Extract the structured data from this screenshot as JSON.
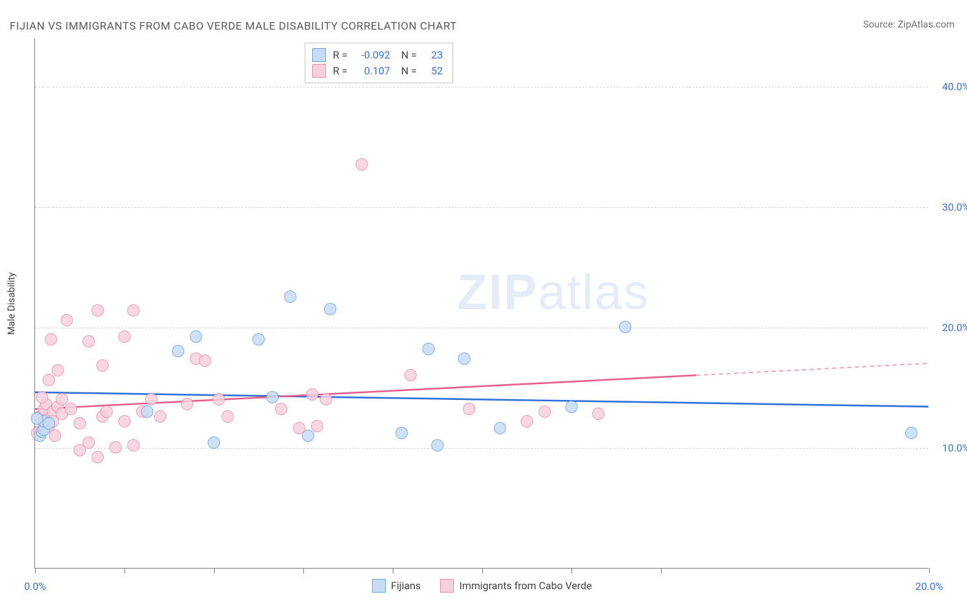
{
  "title": "FIJIAN VS IMMIGRANTS FROM CABO VERDE MALE DISABILITY CORRELATION CHART",
  "source": "Source: ZipAtlas.com",
  "watermark_a": "ZIP",
  "watermark_b": "atlas",
  "ylabel": "Male Disability",
  "chart": {
    "type": "scatter",
    "xlim": [
      0,
      20
    ],
    "ylim": [
      0,
      44
    ],
    "yticks": [
      10,
      20,
      30,
      40
    ],
    "ytick_labels": [
      "10.0%",
      "20.0%",
      "30.0%",
      "40.0%"
    ],
    "xticks": [
      0,
      2,
      4,
      6,
      8,
      10,
      12,
      14,
      20
    ],
    "xtick_labels_visible": {
      "0": "0.0%",
      "20": "20.0%"
    },
    "background_color": "#ffffff",
    "grid_color": "#d5d5d5",
    "axis_color": "#808080",
    "marker_radius": 9,
    "series": {
      "fijians": {
        "label": "Fijians",
        "fill": "#c7dcf4",
        "stroke": "#6fa3e0",
        "line_color": "#2e6fd8",
        "r_value": "-0.092",
        "n_value": "23",
        "trend": {
          "y_at_x0": 14.6,
          "y_at_x20": 13.4,
          "solid_until_x": 20
        },
        "points": [
          [
            0.1,
            11.0
          ],
          [
            0.15,
            11.3
          ],
          [
            0.2,
            11.5
          ],
          [
            0.2,
            12.2
          ],
          [
            0.3,
            12.0
          ],
          [
            2.5,
            13.0
          ],
          [
            3.2,
            18.0
          ],
          [
            3.6,
            19.2
          ],
          [
            4.0,
            10.4
          ],
          [
            5.0,
            19.0
          ],
          [
            5.3,
            14.2
          ],
          [
            5.7,
            22.5
          ],
          [
            6.6,
            21.5
          ],
          [
            6.1,
            11.0
          ],
          [
            8.2,
            11.2
          ],
          [
            8.8,
            18.2
          ],
          [
            9.0,
            10.2
          ],
          [
            9.6,
            17.4
          ],
          [
            10.4,
            11.6
          ],
          [
            12.0,
            13.4
          ],
          [
            13.2,
            20.0
          ],
          [
            19.6,
            11.2
          ],
          [
            0.05,
            12.4
          ]
        ]
      },
      "cabo_verde": {
        "label": "Immigrants from Cabo Verde",
        "fill": "#f6d1dd",
        "stroke": "#e98fb0",
        "line_color": "#e85f8d",
        "r_value": "0.107",
        "n_value": "52",
        "trend": {
          "y_at_x0": 13.2,
          "y_at_x20": 17.0,
          "solid_until_x": 14.8
        },
        "points": [
          [
            0.05,
            11.2
          ],
          [
            0.1,
            11.4
          ],
          [
            0.1,
            12.6
          ],
          [
            0.2,
            12.8
          ],
          [
            0.2,
            13.2
          ],
          [
            0.25,
            13.6
          ],
          [
            0.3,
            11.8
          ],
          [
            0.3,
            15.6
          ],
          [
            0.35,
            19.0
          ],
          [
            0.4,
            13.0
          ],
          [
            0.4,
            12.2
          ],
          [
            0.5,
            13.4
          ],
          [
            0.5,
            16.4
          ],
          [
            0.6,
            12.8
          ],
          [
            0.6,
            14.0
          ],
          [
            0.8,
            13.2
          ],
          [
            1.0,
            12.0
          ],
          [
            1.0,
            9.8
          ],
          [
            1.2,
            10.4
          ],
          [
            1.2,
            18.8
          ],
          [
            1.4,
            9.2
          ],
          [
            1.4,
            21.4
          ],
          [
            1.5,
            12.6
          ],
          [
            1.5,
            16.8
          ],
          [
            1.6,
            13.0
          ],
          [
            2.0,
            12.2
          ],
          [
            2.0,
            19.2
          ],
          [
            2.2,
            10.2
          ],
          [
            2.2,
            21.4
          ],
          [
            2.4,
            13.0
          ],
          [
            2.6,
            14.0
          ],
          [
            2.8,
            12.6
          ],
          [
            3.4,
            13.6
          ],
          [
            3.6,
            17.4
          ],
          [
            3.8,
            17.2
          ],
          [
            4.1,
            14.0
          ],
          [
            4.3,
            12.6
          ],
          [
            5.5,
            13.2
          ],
          [
            5.9,
            11.6
          ],
          [
            6.2,
            14.4
          ],
          [
            6.3,
            11.8
          ],
          [
            6.5,
            14.0
          ],
          [
            7.3,
            33.5
          ],
          [
            8.4,
            16.0
          ],
          [
            9.7,
            13.2
          ],
          [
            11.0,
            12.2
          ],
          [
            11.4,
            13.0
          ],
          [
            12.6,
            12.8
          ],
          [
            0.7,
            20.6
          ],
          [
            1.8,
            10.0
          ],
          [
            0.15,
            14.2
          ],
          [
            0.45,
            11.0
          ]
        ]
      }
    },
    "stats_legend": {
      "r_label": "R =",
      "n_label": "N ="
    }
  }
}
